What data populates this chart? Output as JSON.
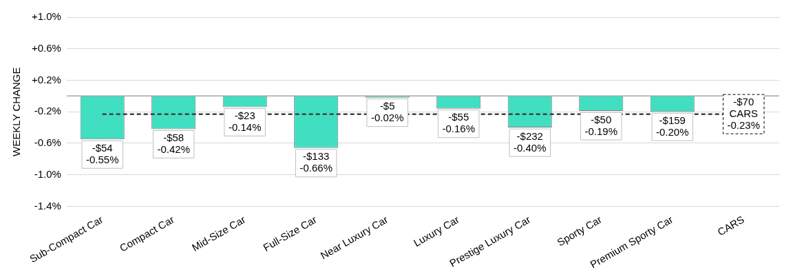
{
  "chart_data": {
    "type": "bar",
    "ylabel": "WEEKLY CHANGE",
    "categories": [
      "Sub-Compact Car",
      "Compact Car",
      "Mid-Size Car",
      "Full-Size Car",
      "Near Luxury Car",
      "Luxury Car",
      "Prestige Luxury Car",
      "Sporty Car",
      "Premium Sporty Car",
      "CARS"
    ],
    "values": [
      -0.55,
      -0.42,
      -0.14,
      -0.66,
      -0.02,
      -0.16,
      -0.4,
      -0.19,
      -0.2,
      null
    ],
    "value_labels": [
      "-$54\n-0.55%",
      "-$58\n-0.42%",
      "-$23\n-0.14%",
      "-$133\n-0.66%",
      "-$5\n-0.02%",
      "-$55\n-0.16%",
      "-$232\n-0.40%",
      "-$50\n-0.19%",
      "-$159\n-0.20%",
      null
    ],
    "color": "#40dfc1",
    "ylim": [
      -1.4,
      1.0
    ],
    "yticks": [
      {
        "value": 1.0,
        "label": "+1.0%"
      },
      {
        "value": 0.6,
        "label": "+0.6%"
      },
      {
        "value": 0.2,
        "label": "+0.2%"
      },
      {
        "value": -0.2,
        "label": "-0.2%"
      },
      {
        "value": -0.6,
        "label": "-0.6%"
      },
      {
        "value": -1.0,
        "label": "-1.0%"
      },
      {
        "value": -1.4,
        "label": "-1.4%"
      }
    ],
    "grid": "y",
    "legend": false,
    "ref_lines": [
      {
        "axis": "y",
        "value": 0,
        "color": "#a6a6a6",
        "line_style": "solid"
      },
      {
        "axis": "y",
        "value": -0.23,
        "label": "-$70\nCARS\n-0.23%",
        "color": "#404040",
        "line_style": "dashed"
      }
    ]
  }
}
